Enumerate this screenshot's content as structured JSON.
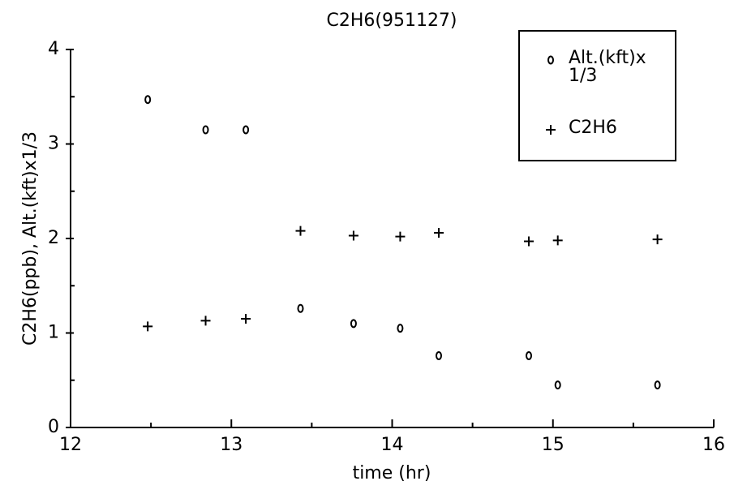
{
  "chart_data": {
    "type": "scatter",
    "title": "C2H6(951127)",
    "x_label": "time (hr)",
    "y_label": "C2H6(ppb), Alt.(kft)x1/3",
    "xlim": [
      12,
      16
    ],
    "xticks": [
      12,
      13,
      14,
      15,
      16
    ],
    "ylim": [
      0,
      4
    ],
    "yticks": [
      0,
      1,
      2,
      3,
      4
    ],
    "legend": "top-right",
    "series": [
      {
        "name": "Alt.(kft)x 1/3",
        "color": "#000000",
        "marker": "o",
        "x": [
          12.48,
          12.84,
          13.09,
          13.43,
          13.76,
          14.05,
          14.29,
          14.85,
          15.03,
          15.65
        ],
        "values": [
          3.47,
          3.15,
          3.15,
          1.26,
          1.1,
          1.05,
          0.76,
          0.76,
          0.45,
          0.45
        ]
      },
      {
        "name": "C2H6",
        "color": "#000000",
        "marker": "+",
        "x": [
          12.48,
          12.84,
          13.09,
          13.43,
          13.76,
          14.05,
          14.29,
          14.85,
          15.03,
          15.65
        ],
        "values": [
          1.07,
          1.13,
          1.15,
          2.08,
          2.03,
          2.02,
          2.06,
          1.97,
          1.98,
          1.99
        ]
      }
    ]
  }
}
